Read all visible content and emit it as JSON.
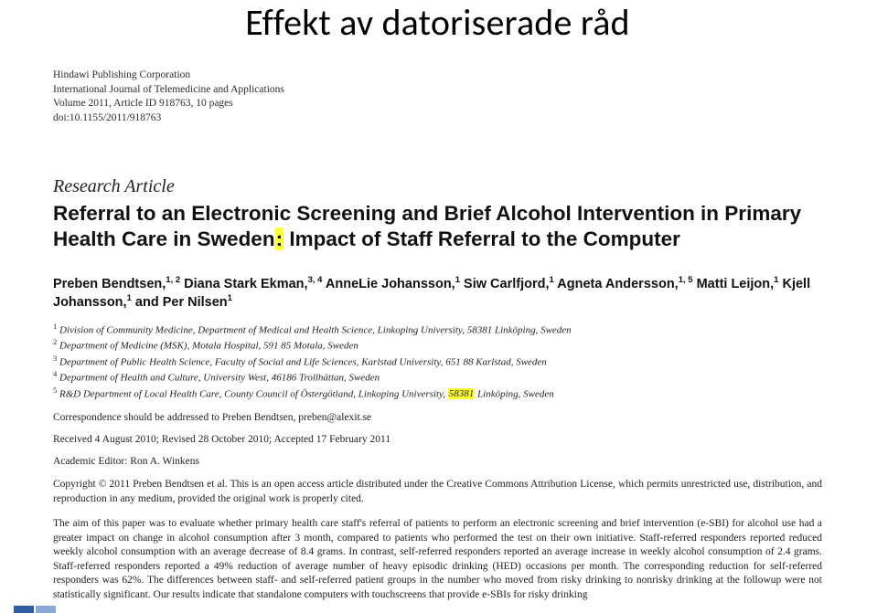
{
  "slide": {
    "title": "Effekt av datoriserade råd"
  },
  "publisher": {
    "line1": "Hindawi Publishing Corporation",
    "line2": "International Journal of Telemedicine and Applications",
    "line3": "Volume 2011, Article ID 918763, 10 pages",
    "line4": "doi:10.1155/2011/918763"
  },
  "article": {
    "section_label": "Research Article",
    "title_pre": "Referral to an Electronic Screening and Brief Alcohol Intervention in Primary Health Care in Sweden",
    "title_colon": ":",
    "title_post": " Impact of Staff Referral to the Computer",
    "authors_html": "Preben Bendtsen,<sup>1, 2</sup> Diana Stark Ekman,<sup>3, 4</sup> AnneLie Johansson,<sup>1</sup> Siw Carlfjord,<sup>1</sup> Agneta Andersson,<sup>1, 5</sup> Matti Leijon,<sup>1</sup> Kjell Johansson,<sup>1</sup> and Per Nilsen<sup>1</sup>",
    "aff1": "Division of Community Medicine, Department of Medical and Health Science, Linkoping University, 58381 Linköping, Sweden",
    "aff2": "Department of Medicine (MSK), Motala Hospital, 591 85 Motala, Sweden",
    "aff3": "Department of Public Health Science, Faculty of Social and Life Sciences, Karlstad University, 651 88 Karlstad, Sweden",
    "aff4": "Department of Health and Culture, University West, 46186 Trollhättan, Sweden",
    "aff5_pre": "R&D Department of Local Health Care, County Council of Östergötland, Linkoping University, ",
    "aff5_hl": "58381",
    "aff5_post": " Linköping, Sweden",
    "correspondence": "Correspondence should be addressed to Preben Bendtsen, preben@alexit.se",
    "dates": "Received 4 August 2010; Revised 28 October 2010; Accepted 17 February 2011",
    "editor": "Academic Editor: Ron A. Winkens",
    "copyright": "Copyright © 2011 Preben Bendtsen et al. This is an open access article distributed under the Creative Commons Attribution License, which permits unrestricted use, distribution, and reproduction in any medium, provided the original work is properly cited.",
    "abstract": "The aim of this paper was to evaluate whether primary health care staff's referral of patients to perform an electronic screening and brief intervention (e-SBI) for alcohol use had a greater impact on change in alcohol consumption after 3 month, compared to patients who performed the test on their own initiative. Staff-referred responders reported reduced weekly alcohol consumption with an average decrease of 8.4 grams. In contrast, self-referred responders reported an average increase in weekly alcohol consumption of 2.4 grams. Staff-referred responders reported a 49% reduction of average number of heavy episodic drinking (HED) occasions per month. The corresponding reduction for self-referred responders was 62%. The differences between staff- and self-referred patient groups in the number who moved from risky drinking to nonrisky drinking at the followup were not statistically significant. Our results indicate that standalone computers with touchscreens that provide e-SBIs for risky drinking"
  },
  "colors": {
    "highlight": "#ffff33",
    "text": "#222222",
    "bg": "#ffffff",
    "bar1": "#2f5fa3",
    "bar2": "#8aa9d6"
  }
}
